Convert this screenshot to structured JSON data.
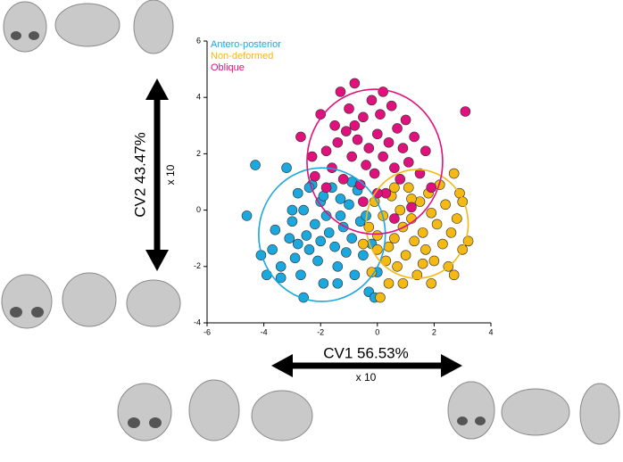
{
  "chart_data": {
    "type": "scatter",
    "xlim": [
      -6,
      4
    ],
    "xticks": [
      -6,
      -4,
      -2,
      0,
      2,
      4
    ],
    "ylim": [
      -4,
      6
    ],
    "yticks": [
      -4,
      -2,
      0,
      2,
      4,
      6
    ],
    "legend": "upper left",
    "x_label": "CV1 56.53%",
    "x_scale": "x 10",
    "y_label": "CV2 43.47%",
    "y_scale": "x 10",
    "series": [
      {
        "name": "Antero-posterior",
        "color": "#1aa8df",
        "ellipse": {
          "cx": -1.95,
          "cy": -0.87,
          "rx": 2.23,
          "ry": 2.37
        },
        "x": [
          -4.6,
          -4.3,
          -4.1,
          -3.9,
          -3.7,
          -3.6,
          -3.4,
          -3.2,
          -3.1,
          -3.0,
          -2.9,
          -2.8,
          -2.7,
          -2.6,
          -2.5,
          -2.4,
          -2.3,
          -2.2,
          -2.1,
          -2.0,
          -2.0,
          -1.9,
          -1.8,
          -1.7,
          -1.6,
          -1.5,
          -1.4,
          -1.3,
          -1.2,
          -1.1,
          -1.0,
          -0.9,
          -0.8,
          -0.7,
          -0.6,
          -0.5,
          -0.4,
          -0.3,
          -0.2,
          -0.1,
          0.0,
          -2.6,
          -3.4,
          -1.4,
          -2.4,
          -1.9,
          -3.0,
          -0.9,
          -1.3,
          -2.8
        ],
        "values": [
          -0.2,
          1.6,
          -1.6,
          -2.3,
          -1.4,
          -0.7,
          -2.0,
          1.5,
          -1.0,
          -0.4,
          -1.7,
          0.6,
          -2.3,
          0.0,
          -0.9,
          -1.4,
          0.9,
          -0.5,
          -1.8,
          0.3,
          -1.1,
          -2.6,
          -0.2,
          -0.8,
          0.8,
          -1.3,
          -2.0,
          0.4,
          -0.6,
          -1.5,
          0.2,
          -1.0,
          -2.3,
          0.7,
          -0.4,
          -1.6,
          -0.2,
          -2.9,
          -1.2,
          -3.1,
          -2.2,
          -3.1,
          -2.4,
          -2.6,
          0.8,
          0.5,
          0.0,
          1.0,
          -0.2,
          -1.2
        ]
      },
      {
        "name": "Non-deformed",
        "color": "#f5b914",
        "ellipse": {
          "cx": 1.4,
          "cy": -0.49,
          "rx": 1.8,
          "ry": 1.93
        },
        "x": [
          -0.5,
          -0.3,
          -0.2,
          -0.1,
          0.0,
          0.1,
          0.2,
          0.3,
          0.4,
          0.5,
          0.6,
          0.7,
          0.8,
          0.9,
          1.0,
          1.1,
          1.2,
          1.3,
          1.4,
          1.5,
          1.6,
          1.7,
          1.8,
          1.9,
          2.0,
          2.1,
          2.2,
          2.3,
          2.4,
          2.5,
          2.6,
          2.7,
          2.8,
          2.9,
          3.0,
          3.2,
          3.0,
          2.7,
          0.4,
          0.9,
          1.6,
          0.0,
          0.6,
          1.9,
          1.2
        ],
        "values": [
          -1.2,
          -0.6,
          -2.2,
          0.3,
          -1.4,
          -3.1,
          -0.2,
          -1.8,
          -2.6,
          0.5,
          -1.0,
          -2.0,
          0.0,
          -0.6,
          -1.6,
          0.8,
          -0.3,
          -1.1,
          -2.3,
          0.3,
          -0.8,
          -1.4,
          0.6,
          -0.1,
          -1.8,
          -0.5,
          0.9,
          -1.2,
          0.2,
          -2.0,
          -0.8,
          -2.3,
          -0.3,
          0.6,
          -1.4,
          -1.1,
          0.3,
          1.3,
          -1.3,
          -2.6,
          -1.9,
          -0.9,
          0.8,
          -2.6,
          0.4
        ]
      },
      {
        "name": "Oblique",
        "color": "#e0117c",
        "ellipse": {
          "cx": -0.09,
          "cy": 1.72,
          "rx": 2.39,
          "ry": 2.57
        },
        "x": [
          -2.7,
          -2.2,
          -2.0,
          -1.8,
          -1.6,
          -1.5,
          -1.4,
          -1.3,
          -1.2,
          -1.1,
          -1.0,
          -0.9,
          -0.8,
          -0.7,
          -0.6,
          -0.5,
          -0.4,
          -0.3,
          -0.2,
          -0.1,
          0.0,
          0.1,
          0.2,
          0.3,
          0.4,
          0.5,
          0.6,
          0.7,
          0.8,
          0.9,
          1.0,
          1.1,
          1.3,
          1.5,
          1.7,
          1.9,
          3.1,
          0.0,
          -0.5,
          0.6,
          1.2,
          -1.8,
          -0.8,
          0.2,
          -2.3
        ],
        "values": [
          2.6,
          1.2,
          3.4,
          2.1,
          1.5,
          3.0,
          2.4,
          4.2,
          1.1,
          2.8,
          3.6,
          1.9,
          4.5,
          2.5,
          0.9,
          3.3,
          1.6,
          2.2,
          3.9,
          1.3,
          2.7,
          3.4,
          1.9,
          0.6,
          2.4,
          3.7,
          1.5,
          2.9,
          1.1,
          2.2,
          3.2,
          1.7,
          2.6,
          1.3,
          2.1,
          0.8,
          3.5,
          0.6,
          0.3,
          -0.3,
          0.1,
          0.8,
          3.0,
          4.2,
          1.9
        ]
      }
    ]
  }
}
